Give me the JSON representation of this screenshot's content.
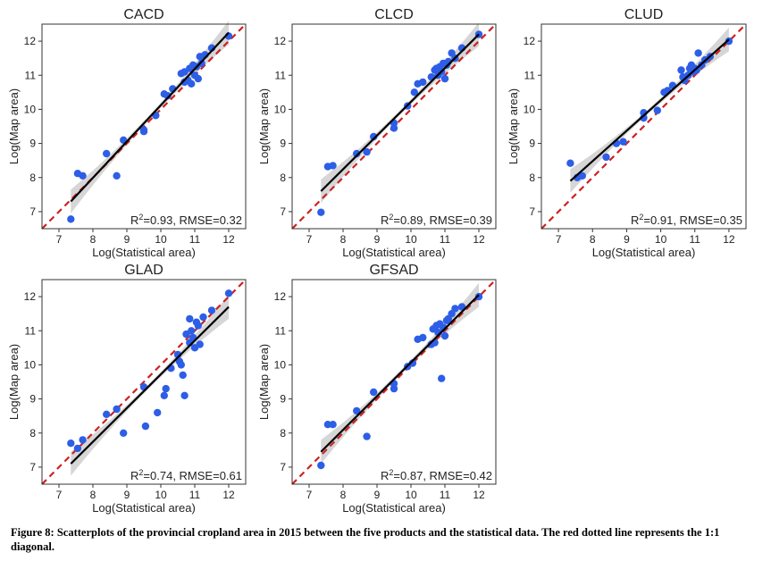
{
  "chart_data": [
    {
      "type": "scatter",
      "title": "CACD",
      "xlabel": "Log(Statistical area)",
      "ylabel": "Log(Map area)",
      "xlim": [
        6.5,
        12.5
      ],
      "ylim": [
        6.5,
        12.5
      ],
      "xticks": [
        7,
        8,
        9,
        10,
        11,
        12
      ],
      "yticks": [
        7,
        8,
        9,
        10,
        11,
        12
      ],
      "stat_text": "R²=0.93, RMSE=0.32",
      "fit": {
        "x": [
          7.35,
          12.0
        ],
        "y": [
          7.3,
          12.25
        ]
      },
      "points": [
        [
          7.35,
          6.78
        ],
        [
          7.55,
          8.12
        ],
        [
          7.7,
          8.05
        ],
        [
          8.4,
          8.7
        ],
        [
          8.7,
          8.05
        ],
        [
          8.9,
          9.1
        ],
        [
          9.5,
          9.4
        ],
        [
          9.5,
          9.35
        ],
        [
          9.85,
          9.82
        ],
        [
          10.1,
          10.45
        ],
        [
          10.2,
          10.4
        ],
        [
          10.35,
          10.6
        ],
        [
          10.6,
          11.05
        ],
        [
          10.7,
          11.1
        ],
        [
          10.7,
          10.8
        ],
        [
          10.8,
          10.85
        ],
        [
          10.85,
          11.2
        ],
        [
          10.9,
          10.75
        ],
        [
          10.95,
          11.3
        ],
        [
          11.0,
          11.0
        ],
        [
          11.05,
          11.25
        ],
        [
          11.1,
          10.9
        ],
        [
          11.15,
          11.55
        ],
        [
          11.2,
          11.35
        ],
        [
          11.3,
          11.6
        ],
        [
          11.5,
          11.8
        ],
        [
          12.0,
          12.15
        ]
      ]
    },
    {
      "type": "scatter",
      "title": "CLCD",
      "xlabel": "Log(Statistical area)",
      "ylabel": "Log(Map area)",
      "xlim": [
        6.5,
        12.5
      ],
      "ylim": [
        6.5,
        12.5
      ],
      "xticks": [
        7,
        8,
        9,
        10,
        11,
        12
      ],
      "yticks": [
        7,
        8,
        9,
        10,
        11,
        12
      ],
      "stat_text": "R²=0.89, RMSE=0.39",
      "fit": {
        "x": [
          7.35,
          12.0
        ],
        "y": [
          7.6,
          12.2
        ]
      },
      "points": [
        [
          7.35,
          6.98
        ],
        [
          7.55,
          8.32
        ],
        [
          7.7,
          8.35
        ],
        [
          8.4,
          8.7
        ],
        [
          8.7,
          8.75
        ],
        [
          8.9,
          9.2
        ],
        [
          9.5,
          9.45
        ],
        [
          9.5,
          9.6
        ],
        [
          9.9,
          10.1
        ],
        [
          10.1,
          10.5
        ],
        [
          10.2,
          10.75
        ],
        [
          10.35,
          10.8
        ],
        [
          10.6,
          10.95
        ],
        [
          10.7,
          11.15
        ],
        [
          10.75,
          11.2
        ],
        [
          10.8,
          11.0
        ],
        [
          10.85,
          11.25
        ],
        [
          10.9,
          11.1
        ],
        [
          10.95,
          11.35
        ],
        [
          11.0,
          10.9
        ],
        [
          11.05,
          11.3
        ],
        [
          11.1,
          11.4
        ],
        [
          11.2,
          11.65
        ],
        [
          11.3,
          11.5
        ],
        [
          11.5,
          11.8
        ],
        [
          12.0,
          12.2
        ]
      ]
    },
    {
      "type": "scatter",
      "title": "CLUD",
      "xlabel": "Log(Statistical area)",
      "ylabel": "Log(Map area)",
      "xlim": [
        6.5,
        12.5
      ],
      "ylim": [
        6.5,
        12.5
      ],
      "xticks": [
        7,
        8,
        9,
        10,
        11,
        12
      ],
      "yticks": [
        7,
        8,
        9,
        10,
        11,
        12
      ],
      "stat_text": "R²=0.91, RMSE=0.35",
      "fit": {
        "x": [
          7.35,
          12.0
        ],
        "y": [
          7.9,
          12.05
        ]
      },
      "points": [
        [
          7.35,
          8.42
        ],
        [
          7.55,
          8.0
        ],
        [
          7.7,
          8.05
        ],
        [
          8.4,
          8.6
        ],
        [
          8.7,
          9.0
        ],
        [
          8.9,
          9.05
        ],
        [
          9.5,
          9.75
        ],
        [
          9.5,
          9.9
        ],
        [
          9.9,
          9.97
        ],
        [
          10.1,
          10.5
        ],
        [
          10.2,
          10.55
        ],
        [
          10.35,
          10.7
        ],
        [
          10.6,
          11.15
        ],
        [
          10.65,
          10.95
        ],
        [
          10.7,
          10.85
        ],
        [
          10.8,
          11.0
        ],
        [
          10.85,
          11.2
        ],
        [
          10.9,
          11.3
        ],
        [
          10.95,
          11.1
        ],
        [
          11.0,
          11.2
        ],
        [
          11.05,
          11.15
        ],
        [
          11.1,
          11.65
        ],
        [
          11.2,
          11.3
        ],
        [
          11.3,
          11.45
        ],
        [
          11.45,
          11.55
        ],
        [
          12.0,
          12.0
        ]
      ]
    },
    {
      "type": "scatter",
      "title": "GLAD",
      "xlabel": "Log(Statistical area)",
      "ylabel": "Log(Map area)",
      "xlim": [
        6.5,
        12.5
      ],
      "ylim": [
        6.5,
        12.5
      ],
      "xticks": [
        7,
        8,
        9,
        10,
        11,
        12
      ],
      "yticks": [
        7,
        8,
        9,
        10,
        11,
        12
      ],
      "stat_text": "R²=0.74, RMSE=0.61",
      "fit": {
        "x": [
          7.35,
          12.0
        ],
        "y": [
          7.1,
          11.7
        ]
      },
      "points": [
        [
          7.35,
          7.7
        ],
        [
          7.55,
          7.55
        ],
        [
          7.7,
          7.8
        ],
        [
          8.4,
          8.55
        ],
        [
          8.7,
          8.7
        ],
        [
          8.9,
          8.0
        ],
        [
          9.5,
          9.35
        ],
        [
          9.55,
          8.2
        ],
        [
          9.9,
          8.6
        ],
        [
          10.1,
          9.1
        ],
        [
          10.15,
          9.3
        ],
        [
          10.3,
          9.9
        ],
        [
          10.5,
          10.3
        ],
        [
          10.55,
          10.1
        ],
        [
          10.6,
          10.0
        ],
        [
          10.65,
          9.7
        ],
        [
          10.7,
          9.1
        ],
        [
          10.75,
          10.9
        ],
        [
          10.85,
          11.35
        ],
        [
          10.85,
          10.65
        ],
        [
          10.9,
          11.0
        ],
        [
          10.95,
          10.8
        ],
        [
          11.0,
          10.5
        ],
        [
          11.05,
          11.25
        ],
        [
          11.1,
          11.15
        ],
        [
          11.15,
          10.6
        ],
        [
          11.25,
          11.4
        ],
        [
          11.5,
          11.6
        ],
        [
          12.0,
          12.1
        ]
      ]
    },
    {
      "type": "scatter",
      "title": "GFSAD",
      "xlabel": "Log(Statistical area)",
      "ylabel": "Log(Map area)",
      "xlim": [
        6.5,
        12.5
      ],
      "ylim": [
        6.5,
        12.5
      ],
      "xticks": [
        7,
        8,
        9,
        10,
        11,
        12
      ],
      "yticks": [
        7,
        8,
        9,
        10,
        11,
        12
      ],
      "stat_text": "R²=0.87, RMSE=0.42",
      "fit": {
        "x": [
          7.35,
          12.0
        ],
        "y": [
          7.45,
          12.05
        ]
      },
      "points": [
        [
          7.35,
          7.05
        ],
        [
          7.55,
          8.25
        ],
        [
          7.7,
          8.25
        ],
        [
          8.4,
          8.65
        ],
        [
          8.7,
          7.9
        ],
        [
          8.9,
          9.2
        ],
        [
          9.5,
          9.3
        ],
        [
          9.5,
          9.45
        ],
        [
          9.9,
          9.95
        ],
        [
          10.05,
          10.05
        ],
        [
          10.2,
          10.75
        ],
        [
          10.35,
          10.8
        ],
        [
          10.6,
          10.6
        ],
        [
          10.65,
          11.05
        ],
        [
          10.7,
          10.65
        ],
        [
          10.75,
          11.15
        ],
        [
          10.8,
          10.95
        ],
        [
          10.85,
          11.2
        ],
        [
          10.9,
          9.6
        ],
        [
          10.95,
          11.1
        ],
        [
          11.0,
          10.85
        ],
        [
          11.05,
          11.3
        ],
        [
          11.1,
          11.35
        ],
        [
          11.2,
          11.5
        ],
        [
          11.3,
          11.65
        ],
        [
          11.5,
          11.7
        ],
        [
          12.0,
          12.0
        ]
      ]
    }
  ],
  "caption": "Figure 8: Scatterplots of the provincial cropland area in 2015 between the five products and the statistical data. The red dotted line represents the 1:1 diagonal.",
  "colors": {
    "point": "#2d5ee6",
    "fit_line": "#000000",
    "diagonal": "#cc2222",
    "band": "#cfcfcf",
    "frame": "#333333"
  }
}
